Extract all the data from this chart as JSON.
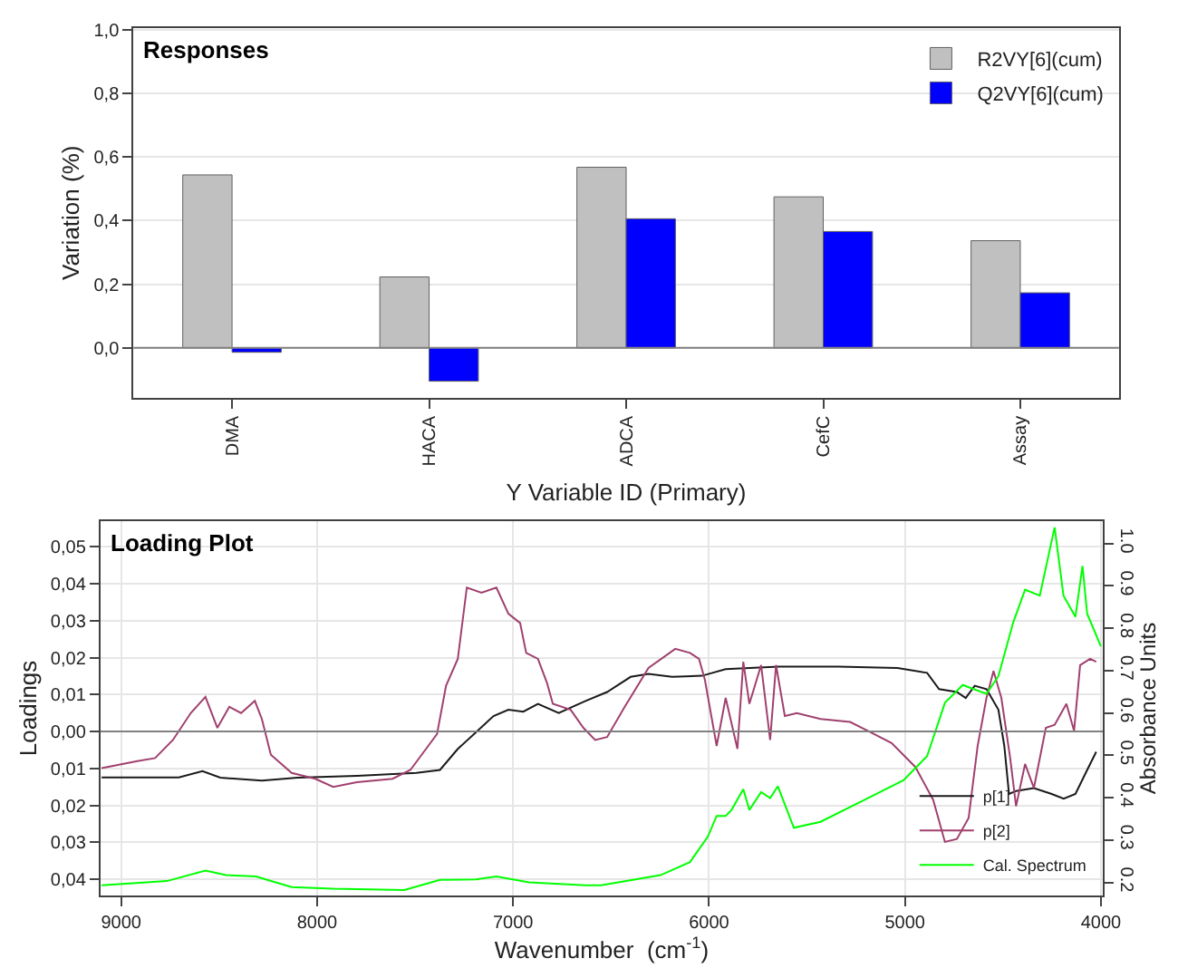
{
  "chart_data": [
    {
      "type": "bar",
      "title": "Responses",
      "xlabel": "Y Variable ID (Primary)",
      "ylabel": "Variation (%)",
      "categories": [
        "DMA",
        "HACA",
        "ADCA",
        "CefC",
        "Assay"
      ],
      "series": [
        {
          "name": "R2VY[6](cum)",
          "color": "#c0c0c0",
          "values": [
            0.544,
            0.223,
            0.568,
            0.475,
            0.337
          ]
        },
        {
          "name": "Q2VY[6](cum)",
          "color": "#0000ff",
          "values": [
            -0.014,
            -0.105,
            0.406,
            0.366,
            0.173
          ]
        }
      ],
      "ylim": [
        -0.157,
        1.007
      ],
      "yticks": [
        {
          "value": 0,
          "label": "0,0"
        },
        {
          "value": 0.2,
          "label": "0,2"
        },
        {
          "value": 0.4,
          "label": "0,4"
        },
        {
          "value": 0.6,
          "label": "0,6"
        },
        {
          "value": 0.8,
          "label": "0,8"
        },
        {
          "value": 1.0,
          "label": "1,0"
        }
      ],
      "ref_lines": [
        {
          "axis": "y",
          "value": 0,
          "label": null,
          "color": "#808080"
        }
      ],
      "grid": "y",
      "legend": "top right"
    },
    {
      "type": "line",
      "title": "Loading Plot",
      "xlabel": "Wavenumber  (cm$^{-1}$)",
      "ylabel": "Loadings",
      "y2label": "Absorbance Units",
      "series": [
        {
          "name": "p[1]",
          "color": "#1a1a1a",
          "x": [
            9100,
            8706,
            8585,
            8494,
            8282,
            8100,
            7797,
            7494,
            7373,
            7282,
            7191,
            7100,
            7024,
            6948,
            6873,
            6767,
            6630,
            6520,
            6400,
            6309,
            6188,
            6036,
            5915,
            5794,
            5643,
            5340,
            5038,
            4887,
            4826,
            4735,
            4690,
            4644,
            4584,
            4523,
            4493,
            4469,
            4433,
            4342,
            4251,
            4190,
            4130,
            4070,
            4024
          ],
          "values": [
            -0.0124,
            -0.0124,
            -0.0107,
            -0.0125,
            -0.0133,
            -0.0125,
            -0.012,
            -0.0112,
            -0.0104,
            -0.0047,
            -0.0003,
            0.0042,
            0.0059,
            0.0054,
            0.0075,
            0.005,
            0.0083,
            0.0107,
            0.0148,
            0.0156,
            0.0148,
            0.0151,
            0.0169,
            0.0172,
            0.0176,
            0.0176,
            0.0172,
            0.0159,
            0.0115,
            0.0107,
            0.0091,
            0.0124,
            0.0115,
            0.0059,
            -0.0039,
            -0.0169,
            -0.0161,
            -0.0153,
            -0.0169,
            -0.0182,
            -0.0169,
            -0.0104,
            -0.0055
          ]
        },
        {
          "name": "p[2]",
          "color": "#a0406e",
          "x": [
            9100,
            8918,
            8827,
            8736,
            8645,
            8570,
            8509,
            8448,
            8388,
            8318,
            8282,
            8236,
            8130,
            8009,
            7918,
            7797,
            7615,
            7524,
            7433,
            7388,
            7342,
            7282,
            7236,
            7161,
            7085,
            7024,
            6964,
            6933,
            6873,
            6827,
            6797,
            6706,
            6641,
            6581,
            6520,
            6430,
            6309,
            6172,
            6097,
            6051,
            6021,
            5961,
            5915,
            5855,
            5825,
            5794,
            5734,
            5688,
            5658,
            5613,
            5552,
            5431,
            5280,
            5189,
            5068,
            4947,
            4856,
            4796,
            4735,
            4675,
            4629,
            4584,
            4548,
            4508,
            4463,
            4433,
            4387,
            4342,
            4281,
            4236,
            4176,
            4137,
            4106,
            4055,
            4024
          ],
          "values": [
            -0.0099,
            -0.008,
            -0.0072,
            -0.0023,
            0.005,
            0.0094,
            0.001,
            0.0067,
            0.005,
            0.0083,
            0.0034,
            -0.0063,
            -0.0112,
            -0.0128,
            -0.015,
            -0.0137,
            -0.0128,
            -0.0104,
            -0.0039,
            -0.0007,
            0.0124,
            0.0197,
            0.039,
            0.0376,
            0.039,
            0.0319,
            0.0294,
            0.0213,
            0.0197,
            0.0132,
            0.0075,
            0.0059,
            0.001,
            -0.0023,
            -0.0015,
            0.0067,
            0.0172,
            0.0224,
            0.0213,
            0.0197,
            0.014,
            -0.0039,
            0.0091,
            -0.0047,
            0.0189,
            0.0075,
            0.018,
            -0.0023,
            0.018,
            0.0042,
            0.005,
            0.0034,
            0.0026,
            0.0002,
            -0.0031,
            -0.0096,
            -0.0185,
            -0.0299,
            -0.0291,
            -0.0234,
            -0.0039,
            0.0091,
            0.0164,
            0.0091,
            -0.0072,
            -0.0202,
            -0.0088,
            -0.0153,
            0.001,
            0.0018,
            0.0075,
            0.0002,
            0.018,
            0.0197,
            0.0189
          ]
        },
        {
          "name": "Cal. Spectrum",
          "color": "#00ff00",
          "axis": "y2",
          "x": [
            9100,
            8767,
            8570,
            8464,
            8312,
            8130,
            7918,
            7555,
            7373,
            7191,
            7085,
            6918,
            6630,
            6551,
            6248,
            6097,
            6006,
            5961,
            5915,
            5885,
            5825,
            5794,
            5734,
            5688,
            5649,
            5567,
            5431,
            5189,
            5008,
            4887,
            4796,
            4705,
            4584,
            4523,
            4448,
            4387,
            4312,
            4236,
            4191,
            4130,
            4094,
            4070,
            4000
          ],
          "values": [
            0.193,
            0.203,
            0.228,
            0.217,
            0.214,
            0.189,
            0.185,
            0.182,
            0.206,
            0.207,
            0.214,
            0.2,
            0.193,
            0.193,
            0.217,
            0.248,
            0.308,
            0.357,
            0.357,
            0.371,
            0.42,
            0.371,
            0.413,
            0.399,
            0.427,
            0.329,
            0.343,
            0.399,
            0.441,
            0.498,
            0.624,
            0.666,
            0.645,
            0.687,
            0.813,
            0.891,
            0.877,
            1.038,
            0.877,
            0.827,
            0.947,
            0.834,
            0.757
          ]
        }
      ],
      "xlim": [
        9106,
        3990
      ],
      "xticks": [
        9000,
        8000,
        7000,
        6000,
        5000,
        4000
      ],
      "ylim": [
        -0.0444,
        0.057
      ],
      "yticks": [
        {
          "value": -0.04,
          "label": "0,04"
        },
        {
          "value": -0.03,
          "label": "0,03"
        },
        {
          "value": -0.02,
          "label": "0,02"
        },
        {
          "value": -0.01,
          "label": "0,01"
        },
        {
          "value": 0,
          "label": "0,00"
        },
        {
          "value": 0.01,
          "label": "0,01"
        },
        {
          "value": 0.02,
          "label": "0,02"
        },
        {
          "value": 0.03,
          "label": "0,03"
        },
        {
          "value": 0.04,
          "label": "0,04"
        },
        {
          "value": 0.05,
          "label": "0,05"
        }
      ],
      "y2lim": [
        0.169,
        1.053
      ],
      "y2ticks": [
        {
          "value": 0.2,
          "label": "0.2"
        },
        {
          "value": 0.3,
          "label": "0.3"
        },
        {
          "value": 0.4,
          "label": "0.4"
        },
        {
          "value": 0.5,
          "label": "0.5"
        },
        {
          "value": 0.6,
          "label": "0.6"
        },
        {
          "value": 0.7,
          "label": "0.7"
        },
        {
          "value": 0.8,
          "label": "0.8"
        },
        {
          "value": 0.9,
          "label": "0.9"
        },
        {
          "value": 1.0,
          "label": "1.0"
        }
      ],
      "ref_lines": [
        {
          "axis": "y",
          "value": 0,
          "label": null,
          "color": "#808080"
        }
      ],
      "grid": true,
      "legend": "bottom right"
    }
  ]
}
